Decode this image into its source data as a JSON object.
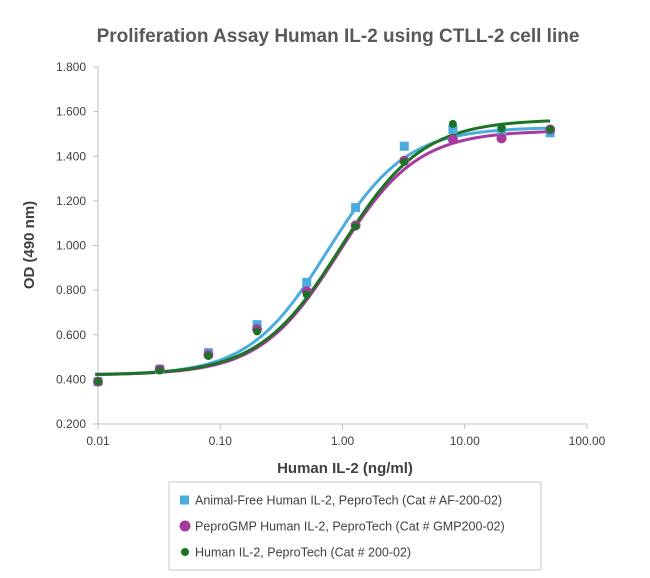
{
  "chart_data": {
    "type": "scatter",
    "title": "Proliferation Assay Human IL-2 using CTLL-2 cell line",
    "xlabel": "Human IL-2 (ng/ml)",
    "ylabel": "OD (490 nm)",
    "x_scale": "log",
    "xlim": [
      0.01,
      100
    ],
    "ylim": [
      0.2,
      1.8
    ],
    "x_ticks": [
      0.01,
      0.1,
      1,
      10,
      100
    ],
    "x_tick_labels": [
      "0.01",
      "0.10",
      "1.00",
      "10.00",
      "100.00"
    ],
    "y_ticks": [
      0.2,
      0.4,
      0.6,
      0.8,
      1.0,
      1.2,
      1.4,
      1.6,
      1.8
    ],
    "y_tick_labels": [
      "0.200",
      "0.400",
      "0.600",
      "0.800",
      "1.000",
      "1.200",
      "1.400",
      "1.600",
      "1.800"
    ],
    "grid": false,
    "legend_position": "bottom",
    "series": [
      {
        "name": "Animal-Free Human IL-2, PeproTech (Cat # AF-200-02)",
        "marker": "square",
        "color": "#4AACDD",
        "points": [
          [
            0.01,
            0.39
          ],
          [
            0.032,
            0.445
          ],
          [
            0.08,
            0.52
          ],
          [
            0.2,
            0.645
          ],
          [
            0.51,
            0.835
          ],
          [
            1.28,
            1.17
          ],
          [
            3.2,
            1.445
          ],
          [
            8,
            1.52
          ],
          [
            20,
            1.515
          ],
          [
            50,
            1.505
          ]
        ],
        "fit": {
          "bottom": 0.418,
          "top": 1.53,
          "ec50": 0.75,
          "hill": 1.35
        }
      },
      {
        "name": "PeproGMP Human IL-2, PeproTech (Cat # GMP200-02)",
        "marker": "circle",
        "color": "#A63A9E",
        "points": [
          [
            0.01,
            0.39
          ],
          [
            0.032,
            0.445
          ],
          [
            0.08,
            0.51
          ],
          [
            0.2,
            0.625
          ],
          [
            0.51,
            0.795
          ],
          [
            1.28,
            1.09
          ],
          [
            3.2,
            1.38
          ],
          [
            8,
            1.475
          ],
          [
            20,
            1.48
          ],
          [
            50,
            1.52
          ]
        ],
        "fit": {
          "bottom": 0.42,
          "top": 1.515,
          "ec50": 0.93,
          "hill": 1.35
        }
      },
      {
        "name": "Human IL-2, PeproTech (Cat # 200-02)",
        "marker": "circle",
        "color": "#1D7324",
        "points": [
          [
            0.01,
            0.39
          ],
          [
            0.032,
            0.44
          ],
          [
            0.08,
            0.505
          ],
          [
            0.2,
            0.615
          ],
          [
            0.51,
            0.78
          ],
          [
            1.28,
            1.085
          ],
          [
            3.2,
            1.375
          ],
          [
            8,
            1.545
          ],
          [
            20,
            1.525
          ],
          [
            50,
            1.52
          ]
        ],
        "fit": {
          "bottom": 0.42,
          "top": 1.565,
          "ec50": 0.97,
          "hill": 1.3
        }
      }
    ]
  }
}
